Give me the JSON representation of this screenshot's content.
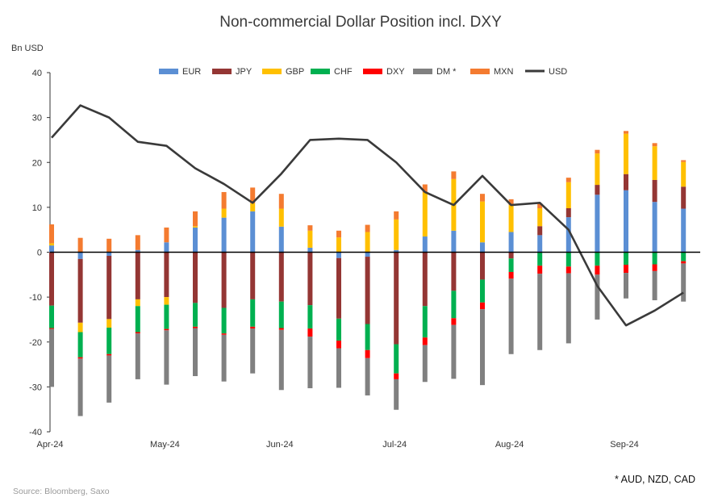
{
  "chart_data": {
    "type": "bar",
    "title": "Non-commercial Dollar Position incl. DXY",
    "ylabel": "Bn USD",
    "ylim": [
      -40,
      40
    ],
    "yticks": [
      40,
      30,
      20,
      10,
      0,
      -10,
      -20,
      -30,
      -40
    ],
    "month_labels": [
      "Apr-24",
      "May-24",
      "Jun-24",
      "Jul-24",
      "Aug-24",
      "Sep-24"
    ],
    "month_week_index": [
      0,
      4,
      8,
      12,
      16,
      20
    ],
    "legend_placement": "top",
    "series": [
      {
        "name": "EUR",
        "color": "#5B8FD4",
        "values": [
          1.5,
          -1.5,
          -0.8,
          0.5,
          2.2,
          5.5,
          7.7,
          9.1,
          5.7,
          1.0,
          -1.3,
          -1.0,
          0.5,
          3.5,
          4.8,
          2.2,
          4.5,
          3.8,
          7.8,
          12.8,
          13.8,
          11.2,
          9.7
        ]
      },
      {
        "name": "JPY",
        "color": "#943634",
        "values": [
          -11.9,
          -14.2,
          -14.1,
          -10.5,
          -10.0,
          -11.3,
          -12.4,
          -10.5,
          -11.0,
          -11.8,
          -13.5,
          -15.0,
          -20.5,
          -12.0,
          -8.6,
          -6.1,
          -1.4,
          2.0,
          2.0,
          2.2,
          3.6,
          4.9,
          4.9
        ]
      },
      {
        "name": "GBP",
        "color": "#FFC000",
        "values": [
          0.5,
          -2.1,
          -1.9,
          -1.5,
          -1.7,
          0.3,
          2.0,
          1.8,
          4.0,
          3.8,
          3.3,
          4.5,
          6.8,
          9.8,
          11.5,
          9.1,
          6.0,
          4.0,
          5.8,
          7.0,
          9.0,
          7.5,
          5.5
        ]
      },
      {
        "name": "CHF",
        "color": "#00B050",
        "values": [
          -5.0,
          -5.6,
          -5.9,
          -5.8,
          -5.4,
          -5.3,
          -5.7,
          -6.1,
          -5.9,
          -5.2,
          -4.9,
          -5.8,
          -6.5,
          -7.0,
          -6.1,
          -5.1,
          -3.0,
          -3.0,
          -3.2,
          -3.0,
          -2.8,
          -2.7,
          -2.0
        ]
      },
      {
        "name": "DXY",
        "color": "#FF0000",
        "values": [
          -0.2,
          -0.3,
          -0.3,
          -0.3,
          -0.3,
          -0.3,
          -0.3,
          -0.4,
          -0.4,
          -1.8,
          -1.7,
          -1.8,
          -1.3,
          -1.7,
          -1.5,
          -1.5,
          -1.5,
          -1.8,
          -1.5,
          -2.0,
          -1.8,
          -1.5,
          -0.5
        ]
      },
      {
        "name": "DM *",
        "color": "#808080",
        "values": [
          -12.9,
          -12.8,
          -10.5,
          -10.2,
          -12.1,
          -10.7,
          -10.4,
          -10.0,
          -13.4,
          -11.5,
          -8.8,
          -8.3,
          -6.8,
          -8.2,
          -12.0,
          -16.9,
          -16.8,
          -17.0,
          -15.6,
          -10.0,
          -5.7,
          -6.5,
          -8.5
        ]
      },
      {
        "name": "MXN",
        "color": "#F47B30",
        "values": [
          4.2,
          3.2,
          3.0,
          3.3,
          3.3,
          3.3,
          3.7,
          3.5,
          3.3,
          1.2,
          1.5,
          1.6,
          1.8,
          1.8,
          1.7,
          1.7,
          1.3,
          1.1,
          1.0,
          0.8,
          0.6,
          0.7,
          0.4
        ]
      },
      {
        "name": "USD",
        "color": "#3A3A3A",
        "type": "line",
        "values": [
          25.5,
          32.7,
          30.0,
          24.6,
          23.7,
          18.7,
          15.2,
          11.0,
          17.5,
          25.0,
          25.3,
          25.0,
          20.0,
          13.4,
          10.5,
          17.0,
          10.5,
          11.0,
          5.0,
          -7.5,
          -16.3,
          -13.0,
          -9.0
        ]
      }
    ]
  },
  "footnote": "* AUD, NZD, CAD",
  "source": "Source: Bloomberg, Saxo"
}
